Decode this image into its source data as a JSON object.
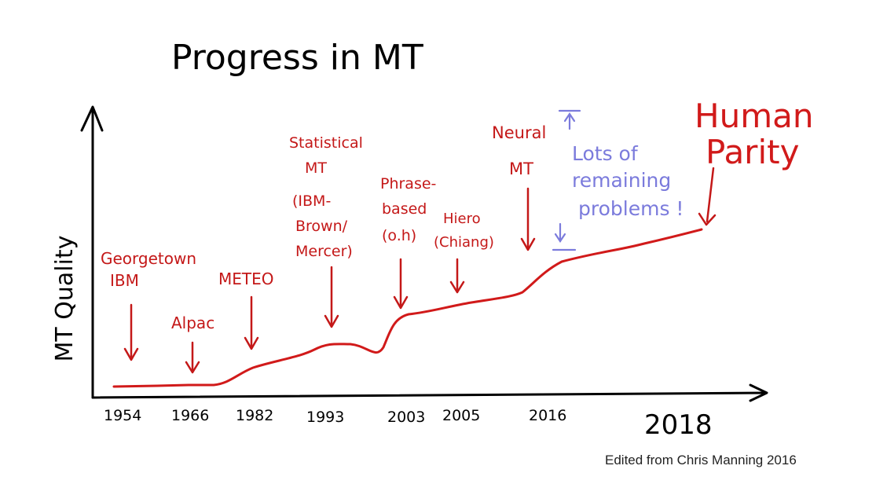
{
  "chart_data": {
    "type": "line",
    "title": "Progress in MT",
    "xlabel": "",
    "ylabel": "MT Quality",
    "x_ticks": [
      "1954",
      "1966",
      "1982",
      "1993",
      "2003",
      "2005",
      "2016",
      "2018"
    ],
    "annotations": [
      {
        "id": "georgetown",
        "lines": [
          "Georgetown",
          "IBM"
        ],
        "x": "1954"
      },
      {
        "id": "alpac",
        "lines": [
          "Alpac"
        ],
        "x": "1966"
      },
      {
        "id": "meteo",
        "lines": [
          "METEO"
        ],
        "x": "1982"
      },
      {
        "id": "statistical",
        "lines": [
          "Statistical",
          "MT",
          "(IBM-",
          "Brown/",
          "Mercer)"
        ],
        "x": "1993"
      },
      {
        "id": "phrase",
        "lines": [
          "Phrase-",
          "based",
          "(o.h)"
        ],
        "x": "2003"
      },
      {
        "id": "hiero",
        "lines": [
          "Hiero",
          "(Chiang)"
        ],
        "x": "2005"
      },
      {
        "id": "neural",
        "lines": [
          "Neural",
          "MT"
        ],
        "x": "2016"
      },
      {
        "id": "parity",
        "lines": [
          "Human",
          "Parity"
        ],
        "x": "2018"
      }
    ],
    "remaining_note": [
      "Lots of",
      "remaining",
      "problems !"
    ],
    "credit": "Edited from  Chris Manning 2016",
    "colors": {
      "curve": "#d11a1a",
      "annotation": "#c41818",
      "note": "#7b7bdc",
      "axis": "#000000"
    }
  }
}
